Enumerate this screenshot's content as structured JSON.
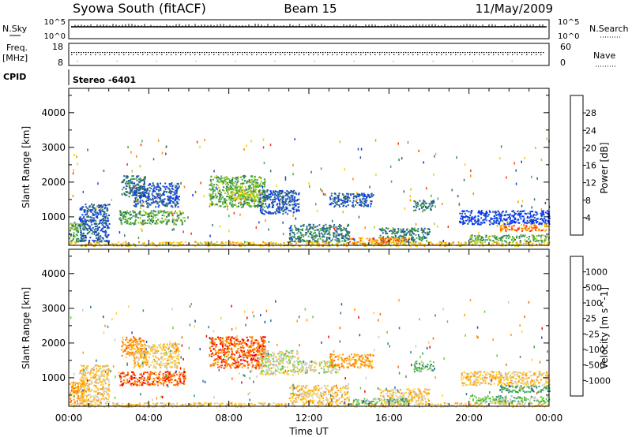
{
  "header": {
    "station": "Syowa South (fitACF)",
    "beam": "Beam 15",
    "date": "11/May/2009"
  },
  "strip_labels": {
    "nsky": "N.Sky",
    "nsky_top": "10^5",
    "nsky_bottom": "10^0",
    "nsearch": "N.Search",
    "nsearch_top": "10^5",
    "nsearch_bottom": "10^0",
    "freq": "Freq.",
    "freq_unit": "[MHz]",
    "freq_top": "18",
    "freq_bottom": "8",
    "nave": "Nave",
    "nave_top": "60",
    "nave_bottom": "0",
    "cpid": "CPID",
    "cpid_value": "Stereo  -6401"
  },
  "chart_data": [
    {
      "type": "heatmap",
      "name": "power",
      "ylabel": "Slant Range [km]",
      "yticks": [
        1000,
        2000,
        3000,
        4000
      ],
      "ylim": [
        180,
        4700
      ],
      "xlim_hours": [
        0,
        24
      ],
      "colorbar": {
        "label": "Power [dB]",
        "ticks": [
          "4",
          "8",
          "12",
          "16",
          "20",
          "24",
          "28"
        ],
        "colors": [
          "#0033ff",
          "#2255aa",
          "#337766",
          "#44aa44",
          "#aacc22",
          "#ffcc00",
          "#ff8800",
          "#ff3300"
        ]
      },
      "regions": [
        {
          "t0": 0.0,
          "t1": 24.0,
          "r0": 180,
          "r1": 300,
          "c": 5
        },
        {
          "t0": 0.0,
          "t1": 0.8,
          "r0": 300,
          "r1": 900,
          "c": 3
        },
        {
          "t0": 2.6,
          "t1": 3.8,
          "r0": 1600,
          "r1": 2200,
          "c": 2
        },
        {
          "t0": 2.5,
          "t1": 5.8,
          "r0": 800,
          "r1": 1200,
          "c": 3
        },
        {
          "t0": 3.2,
          "t1": 5.5,
          "r0": 1300,
          "r1": 2000,
          "c": 1
        },
        {
          "t0": 7.0,
          "t1": 9.8,
          "r0": 1300,
          "r1": 2200,
          "c": 3
        },
        {
          "t0": 8.0,
          "t1": 9.5,
          "r0": 1500,
          "r1": 1900,
          "c": 4
        },
        {
          "t0": 9.5,
          "t1": 11.5,
          "r0": 1100,
          "r1": 1800,
          "c": 1
        },
        {
          "t0": 11.0,
          "t1": 14.0,
          "r0": 300,
          "r1": 800,
          "c": 2
        },
        {
          "t0": 13.0,
          "t1": 15.2,
          "r0": 1300,
          "r1": 1700,
          "c": 1
        },
        {
          "t0": 15.5,
          "t1": 18.0,
          "r0": 300,
          "r1": 700,
          "c": 2
        },
        {
          "t0": 17.2,
          "t1": 18.2,
          "r0": 1200,
          "r1": 1500,
          "c": 2
        },
        {
          "t0": 19.5,
          "t1": 24.0,
          "r0": 800,
          "r1": 1200,
          "c": 0
        },
        {
          "t0": 21.5,
          "t1": 24.0,
          "r0": 600,
          "r1": 800,
          "c": 6
        },
        {
          "t0": 20.0,
          "t1": 24.0,
          "r0": 300,
          "r1": 500,
          "c": 3
        },
        {
          "t0": 0.5,
          "t1": 2.0,
          "r0": 300,
          "r1": 1400,
          "c": 1
        },
        {
          "t0": 14.0,
          "t1": 17.0,
          "r0": 250,
          "r1": 420,
          "c": 6
        }
      ]
    },
    {
      "type": "heatmap",
      "name": "velocity",
      "ylabel": "Slant Range [km]",
      "yticks": [
        1000,
        2000,
        3000,
        4000
      ],
      "ylim": [
        180,
        4700
      ],
      "xlim_hours": [
        0,
        24
      ],
      "xticks": [
        "00:00",
        "04:00",
        "08:00",
        "12:00",
        "16:00",
        "20:00",
        "00:00"
      ],
      "xlabel": "Time UT",
      "colorbar": {
        "label": "Velocity [m s^-1]",
        "ticks": [
          "1000",
          "500",
          "100",
          "25",
          "-25",
          "-100",
          "-500",
          "-1000"
        ],
        "colors": [
          "#2244bb",
          "#337799",
          "#339966",
          "#66cc33",
          "#c8c8c8",
          "#ffcc33",
          "#ff9900",
          "#ff6600",
          "#ee0000"
        ]
      },
      "regions": [
        {
          "t0": 0.0,
          "t1": 24.0,
          "r0": 180,
          "r1": 300,
          "c": 5
        },
        {
          "t0": 0.0,
          "t1": 0.8,
          "r0": 300,
          "r1": 900,
          "c": 6
        },
        {
          "t0": 2.6,
          "t1": 3.8,
          "r0": 1600,
          "r1": 2200,
          "c": 6
        },
        {
          "t0": 2.5,
          "t1": 5.8,
          "r0": 800,
          "r1": 1200,
          "c": 7
        },
        {
          "t0": 3.2,
          "t1": 5.5,
          "r0": 1300,
          "r1": 2000,
          "c": 5
        },
        {
          "t0": 7.0,
          "t1": 9.8,
          "r0": 1300,
          "r1": 2200,
          "c": 7
        },
        {
          "t0": 9.5,
          "t1": 11.5,
          "r0": 1100,
          "r1": 1800,
          "c": 4
        },
        {
          "t0": 11.5,
          "t1": 13.5,
          "r0": 1150,
          "r1": 1500,
          "c": 4
        },
        {
          "t0": 11.0,
          "t1": 14.0,
          "r0": 300,
          "r1": 800,
          "c": 5
        },
        {
          "t0": 13.0,
          "t1": 15.2,
          "r0": 1300,
          "r1": 1700,
          "c": 6
        },
        {
          "t0": 15.5,
          "t1": 18.0,
          "r0": 300,
          "r1": 700,
          "c": 5
        },
        {
          "t0": 17.2,
          "t1": 18.2,
          "r0": 1200,
          "r1": 1500,
          "c": 3
        },
        {
          "t0": 19.5,
          "t1": 24.0,
          "r0": 800,
          "r1": 1200,
          "c": 5
        },
        {
          "t0": 21.5,
          "t1": 24.0,
          "r0": 600,
          "r1": 800,
          "c": 2
        },
        {
          "t0": 20.0,
          "t1": 24.0,
          "r0": 300,
          "r1": 500,
          "c": 3
        },
        {
          "t0": 0.5,
          "t1": 2.0,
          "r0": 300,
          "r1": 1400,
          "c": 5
        },
        {
          "t0": 14.0,
          "t1": 17.0,
          "r0": 250,
          "r1": 420,
          "c": 3
        }
      ]
    }
  ]
}
